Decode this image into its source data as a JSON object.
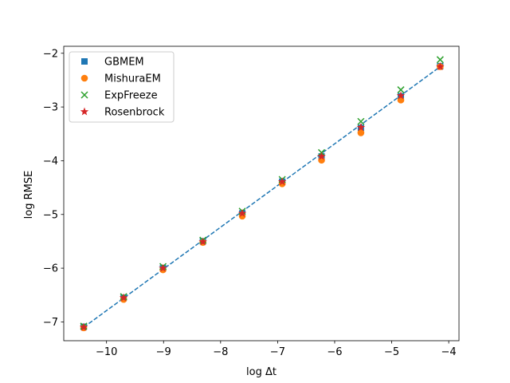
{
  "chart_data": {
    "type": "scatter",
    "title": "",
    "xlabel": "log Δt",
    "ylabel": "log RMSE",
    "xlim": [
      -10.75,
      -3.82
    ],
    "ylim": [
      -7.35,
      -1.87
    ],
    "xticks": [
      -10,
      -9,
      -8,
      -7,
      -6,
      -5,
      -4
    ],
    "yticks": [
      -7,
      -6,
      -5,
      -4,
      -3,
      -2
    ],
    "grid": false,
    "legend_position": "top-left",
    "x": [
      -10.4,
      -9.7,
      -9.01,
      -8.31,
      -7.62,
      -6.92,
      -6.23,
      -5.54,
      -4.84,
      -4.15
    ],
    "series": [
      {
        "name": "GBMEM",
        "marker": "square",
        "color": "#1f77b4",
        "values": [
          -7.09,
          -6.55,
          -6.0,
          -5.5,
          -4.98,
          -4.39,
          -3.92,
          -3.39,
          -2.8,
          -2.24
        ]
      },
      {
        "name": "MishuraEM",
        "marker": "circle",
        "color": "#ff7f0e",
        "values": [
          -7.11,
          -6.58,
          -6.03,
          -5.52,
          -5.03,
          -4.43,
          -3.99,
          -3.48,
          -2.87,
          -2.25
        ]
      },
      {
        "name": "ExpFreeze",
        "marker": "x",
        "color": "#2ca02c",
        "values": [
          -7.08,
          -6.53,
          -5.97,
          -5.48,
          -4.94,
          -4.35,
          -3.85,
          -3.27,
          -2.68,
          -2.12
        ]
      },
      {
        "name": "Rosenbrock",
        "marker": "star",
        "color": "#d62728",
        "values": [
          -7.1,
          -6.55,
          -6.0,
          -5.51,
          -4.98,
          -4.39,
          -3.92,
          -3.38,
          -2.79,
          -2.25
        ]
      }
    ],
    "fit_line": {
      "style": "dashed",
      "color": "#1f77b4",
      "x": [
        -10.4,
        -4.15
      ],
      "y": [
        -7.1,
        -2.25
      ]
    }
  }
}
